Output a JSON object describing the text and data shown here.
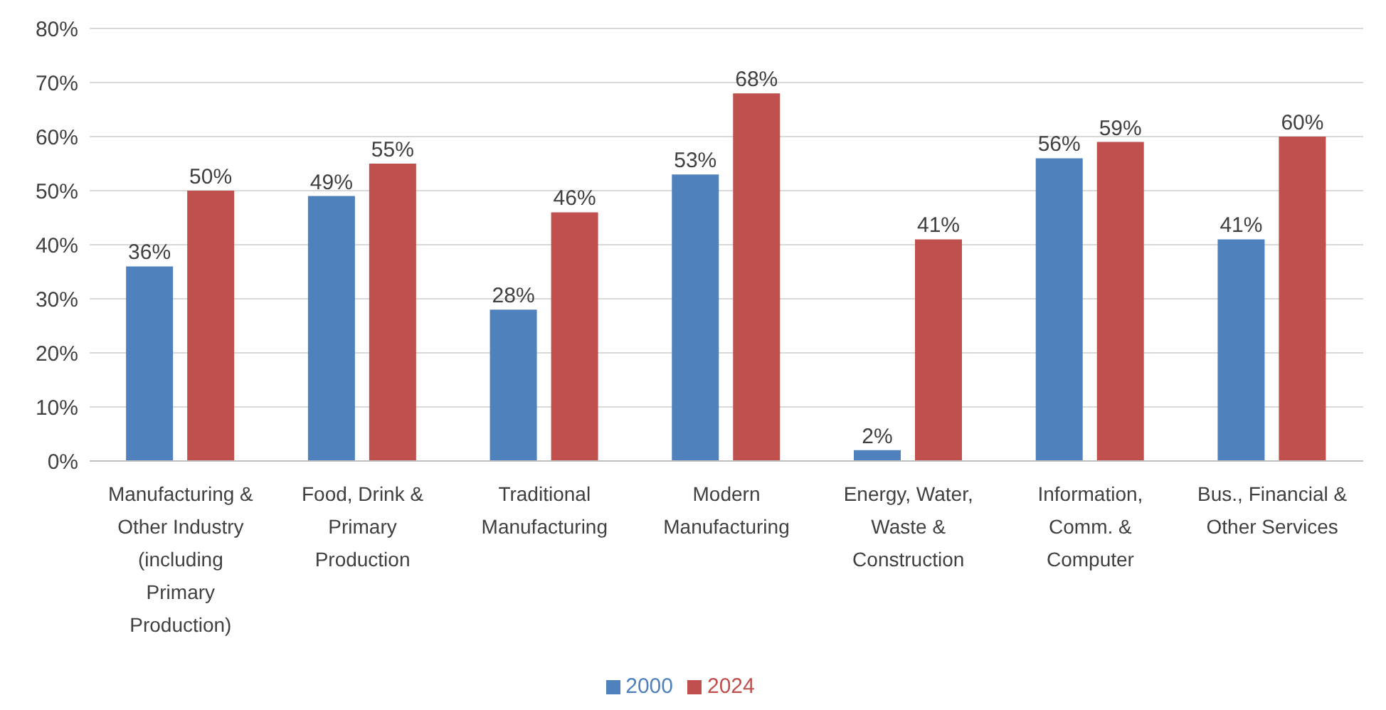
{
  "chart_data": {
    "type": "bar",
    "categories": [
      "Manufacturing & Other Industry (including Primary Production)",
      "Food, Drink & Primary Production",
      "Traditional Manufacturing",
      "Modern Manufacturing",
      "Energy, Water, Waste & Construction",
      "Information, Comm. & Computer",
      "Bus., Financial & Other Services"
    ],
    "series": [
      {
        "name": "2000",
        "color": "#4f81bd",
        "values": [
          36,
          49,
          28,
          53,
          2,
          56,
          41
        ],
        "value_labels": [
          "36%",
          "49%",
          "28%",
          "53%",
          "2%",
          "56%",
          "41%"
        ]
      },
      {
        "name": "2024",
        "color": "#c0504d",
        "values": [
          50,
          55,
          46,
          68,
          41,
          59,
          60
        ],
        "value_labels": [
          "50%",
          "55%",
          "46%",
          "68%",
          "41%",
          "59%",
          "60%"
        ]
      }
    ],
    "ylim": [
      0,
      80
    ],
    "yticks": [
      {
        "value": 0,
        "label": "0%"
      },
      {
        "value": 10,
        "label": "10%"
      },
      {
        "value": 20,
        "label": "20%"
      },
      {
        "value": 30,
        "label": "30%"
      },
      {
        "value": 40,
        "label": "40%"
      },
      {
        "value": 50,
        "label": "50%"
      },
      {
        "value": 60,
        "label": "60%"
      },
      {
        "value": 70,
        "label": "70%"
      },
      {
        "value": 80,
        "label": "80%"
      }
    ],
    "grid": "y",
    "legend": "bottom"
  }
}
